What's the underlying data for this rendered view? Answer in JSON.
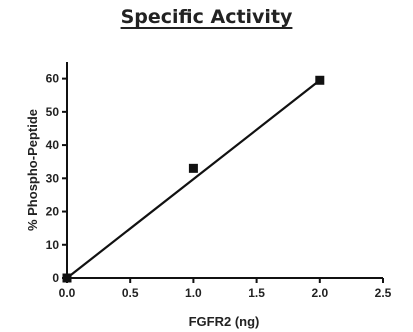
{
  "chart_data": {
    "type": "scatter",
    "title": "Specific Activity",
    "xlabel": "FGFR2 (ng)",
    "ylabel": "% Phospho-Peptide",
    "xlim": [
      0,
      2.5
    ],
    "ylim": [
      0,
      65
    ],
    "x_ticks": [
      "0.0",
      "0.5",
      "1.0",
      "1.5",
      "2.0",
      "2.5"
    ],
    "y_ticks": [
      "0",
      "10",
      "20",
      "30",
      "40",
      "50",
      "60"
    ],
    "series": [
      {
        "x": [
          0,
          1,
          2
        ],
        "y": [
          0,
          33,
          59.5
        ]
      }
    ],
    "fit_line": {
      "x": [
        0,
        2
      ],
      "y": [
        0,
        59.5
      ]
    },
    "marker": "square",
    "colors": {
      "marker": "#111111",
      "line": "#111111",
      "axis": "#111111"
    },
    "grid": false,
    "legend": "none"
  }
}
